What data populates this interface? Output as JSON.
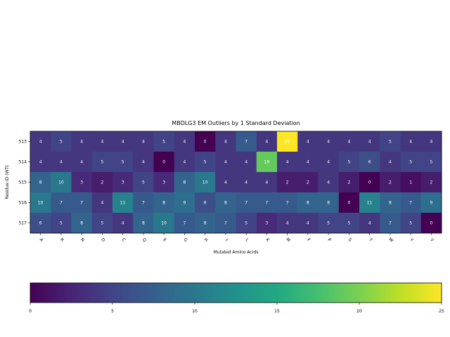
{
  "chart_data": {
    "type": "heatmap",
    "title": "MBDLG3 EM Outliers by 1 Standard Deviation",
    "xlabel": "Mutated Amino Acids",
    "ylabel": "Residue ID (WT)",
    "x_categories": [
      "A",
      "R",
      "N",
      "D",
      "C",
      "Q",
      "E",
      "G",
      "H",
      "I",
      "L",
      "K",
      "M",
      "F",
      "P",
      "S",
      "T",
      "W",
      "Y",
      "V"
    ],
    "y_categories": [
      "513",
      "514",
      "515",
      "516",
      "517"
    ],
    "values": [
      [
        4,
        5,
        4,
        4,
        4,
        4,
        5,
        4,
        0,
        4,
        7,
        4,
        25,
        4,
        4,
        4,
        4,
        5,
        4,
        4
      ],
      [
        4,
        4,
        4,
        5,
        5,
        4,
        0,
        4,
        5,
        4,
        4,
        19,
        4,
        4,
        4,
        5,
        6,
        4,
        5,
        5
      ],
      [
        8,
        10,
        3,
        2,
        3,
        5,
        3,
        8,
        10,
        4,
        4,
        4,
        2,
        2,
        4,
        2,
        0,
        2,
        1,
        2
      ],
      [
        10,
        7,
        7,
        4,
        11,
        7,
        8,
        9,
        6,
        8,
        7,
        7,
        7,
        8,
        8,
        0,
        11,
        8,
        7,
        9
      ],
      [
        6,
        5,
        8,
        5,
        4,
        8,
        10,
        7,
        8,
        7,
        5,
        3,
        4,
        4,
        5,
        5,
        4,
        7,
        5,
        0
      ]
    ],
    "colormap": "viridis",
    "vmin": 0,
    "vmax": 25,
    "colorbar_ticks": [
      0,
      5,
      10,
      15,
      20,
      25
    ],
    "colorbar_orientation": "horizontal"
  }
}
